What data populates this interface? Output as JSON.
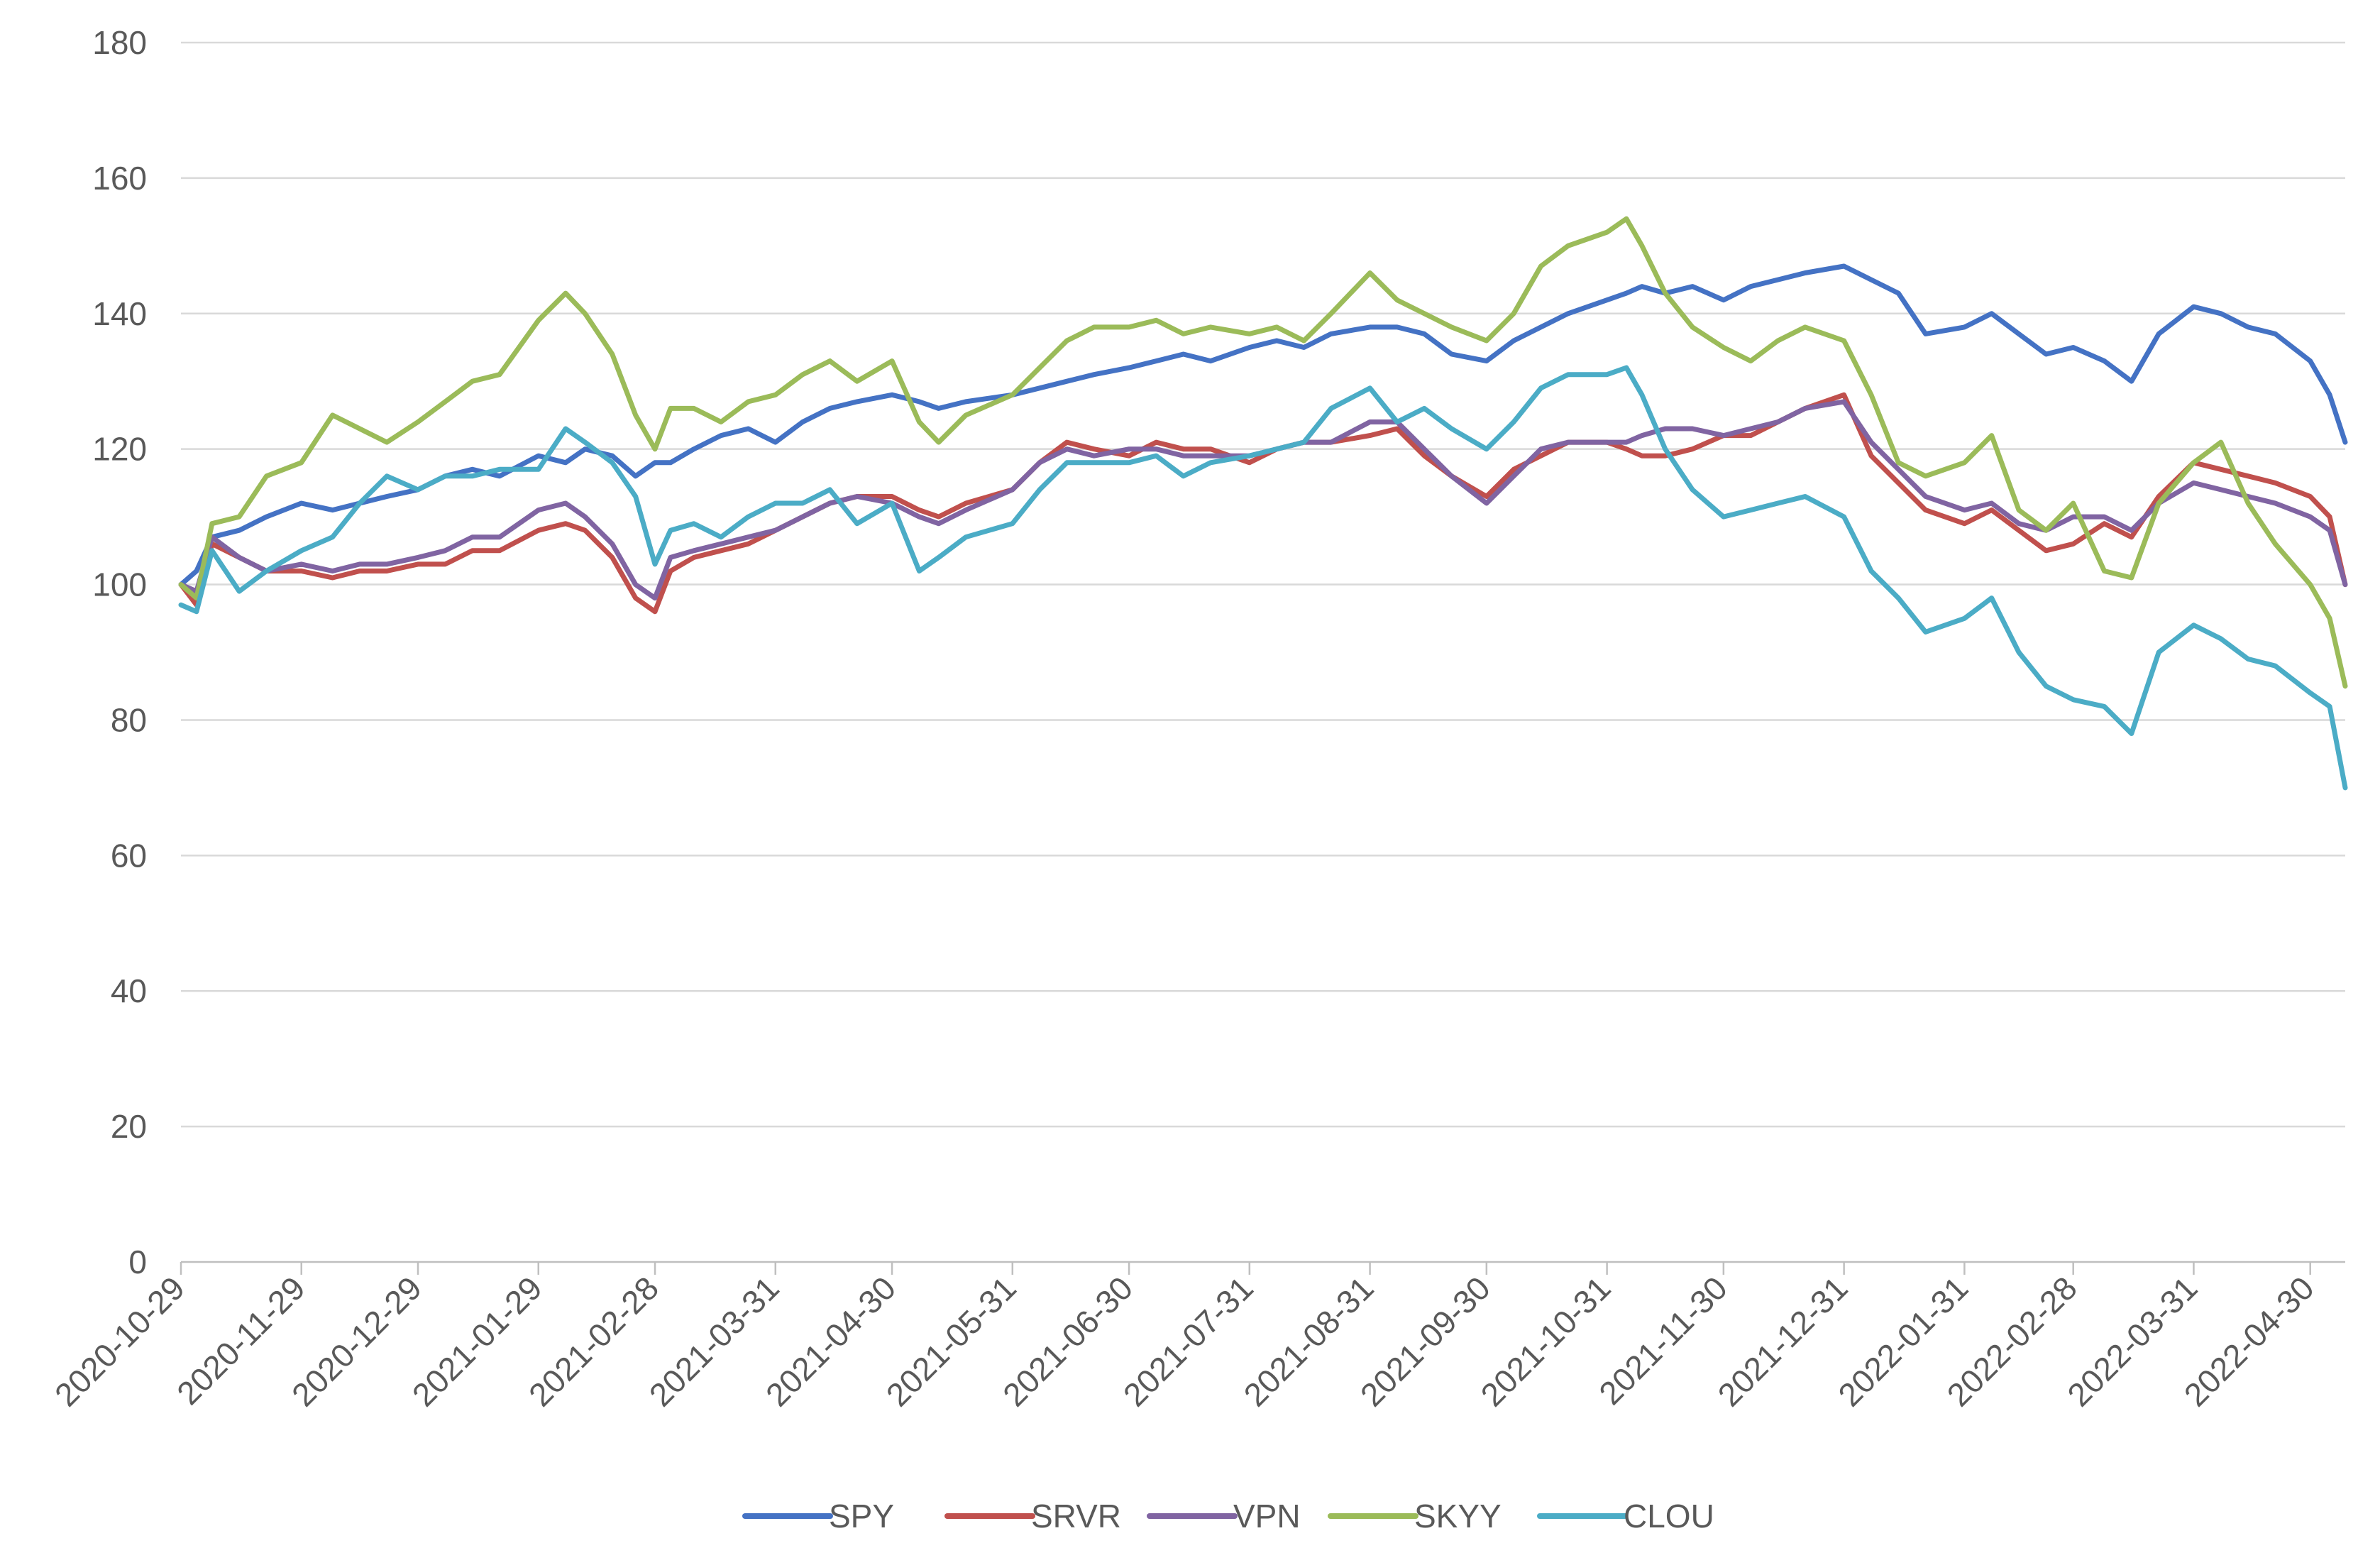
{
  "chart_data": {
    "type": "line",
    "title": "",
    "xlabel": "",
    "ylabel": "",
    "ylim": [
      0,
      180
    ],
    "yticks": [
      0,
      20,
      40,
      60,
      80,
      100,
      120,
      140,
      160,
      180
    ],
    "xlim": [
      "2020-10-29",
      "2022-05-09"
    ],
    "xticks": [
      "2020-10-29",
      "2020-11-29",
      "2020-12-29",
      "2021-01-29",
      "2021-02-28",
      "2021-03-31",
      "2021-04-30",
      "2021-05-31",
      "2021-06-30",
      "2021-07-31",
      "2021-08-31",
      "2021-09-30",
      "2021-10-31",
      "2021-11-30",
      "2021-12-31",
      "2022-01-31",
      "2022-02-28",
      "2022-03-31",
      "2022-04-30"
    ],
    "grid": true,
    "legend_position": "bottom",
    "x": [
      "2020-10-29",
      "2020-11-02",
      "2020-11-06",
      "2020-11-13",
      "2020-11-20",
      "2020-11-29",
      "2020-12-07",
      "2020-12-14",
      "2020-12-21",
      "2020-12-29",
      "2021-01-05",
      "2021-01-12",
      "2021-01-19",
      "2021-01-29",
      "2021-02-05",
      "2021-02-10",
      "2021-02-17",
      "2021-02-23",
      "2021-02-28",
      "2021-03-04",
      "2021-03-10",
      "2021-03-17",
      "2021-03-24",
      "2021-03-31",
      "2021-04-07",
      "2021-04-14",
      "2021-04-21",
      "2021-04-30",
      "2021-05-07",
      "2021-05-12",
      "2021-05-19",
      "2021-05-31",
      "2021-06-07",
      "2021-06-14",
      "2021-06-21",
      "2021-06-30",
      "2021-07-07",
      "2021-07-14",
      "2021-07-21",
      "2021-07-31",
      "2021-08-07",
      "2021-08-14",
      "2021-08-21",
      "2021-08-31",
      "2021-09-07",
      "2021-09-14",
      "2021-09-21",
      "2021-09-30",
      "2021-10-07",
      "2021-10-14",
      "2021-10-21",
      "2021-10-31",
      "2021-11-05",
      "2021-11-09",
      "2021-11-15",
      "2021-11-22",
      "2021-11-30",
      "2021-12-07",
      "2021-12-14",
      "2021-12-21",
      "2021-12-31",
      "2022-01-07",
      "2022-01-14",
      "2022-01-21",
      "2022-01-31",
      "2022-02-07",
      "2022-02-14",
      "2022-02-21",
      "2022-02-28",
      "2022-03-08",
      "2022-03-15",
      "2022-03-22",
      "2022-03-31",
      "2022-04-07",
      "2022-04-14",
      "2022-04-21",
      "2022-04-30",
      "2022-05-05",
      "2022-05-09"
    ],
    "series": [
      {
        "name": "SPY",
        "color": "#4472c4",
        "values": [
          100,
          102,
          107,
          108,
          110,
          112,
          111,
          112,
          113,
          114,
          116,
          117,
          116,
          119,
          118,
          120,
          119,
          116,
          118,
          118,
          120,
          122,
          123,
          121,
          124,
          126,
          127,
          128,
          127,
          126,
          127,
          128,
          129,
          130,
          131,
          132,
          133,
          134,
          133,
          135,
          136,
          135,
          137,
          138,
          138,
          137,
          134,
          133,
          136,
          138,
          140,
          142,
          143,
          144,
          143,
          144,
          142,
          144,
          145,
          146,
          147,
          145,
          143,
          137,
          138,
          140,
          137,
          134,
          135,
          133,
          130,
          137,
          141,
          140,
          138,
          137,
          133,
          128,
          121
        ]
      },
      {
        "name": "SRVR",
        "color": "#c0504d",
        "values": [
          100,
          97,
          106,
          104,
          102,
          102,
          101,
          102,
          102,
          103,
          103,
          105,
          105,
          108,
          109,
          108,
          104,
          98,
          96,
          102,
          104,
          105,
          106,
          108,
          110,
          112,
          113,
          113,
          111,
          110,
          112,
          114,
          118,
          121,
          120,
          119,
          121,
          120,
          120,
          118,
          120,
          121,
          121,
          122,
          123,
          119,
          116,
          113,
          117,
          119,
          121,
          121,
          120,
          119,
          119,
          120,
          122,
          122,
          124,
          126,
          128,
          119,
          115,
          111,
          109,
          111,
          108,
          105,
          106,
          109,
          107,
          113,
          118,
          117,
          116,
          115,
          113,
          110,
          100
        ]
      },
      {
        "name": "VPN",
        "color": "#8064a2",
        "values": [
          100,
          99,
          107,
          104,
          102,
          103,
          102,
          103,
          103,
          104,
          105,
          107,
          107,
          111,
          112,
          110,
          106,
          100,
          98,
          104,
          105,
          106,
          107,
          108,
          110,
          112,
          113,
          112,
          110,
          109,
          111,
          114,
          118,
          120,
          119,
          120,
          120,
          119,
          119,
          119,
          120,
          121,
          121,
          124,
          124,
          120,
          116,
          112,
          116,
          120,
          121,
          121,
          121,
          122,
          123,
          123,
          122,
          123,
          124,
          126,
          127,
          121,
          117,
          113,
          111,
          112,
          109,
          108,
          110,
          110,
          108,
          112,
          115,
          114,
          113,
          112,
          110,
          108,
          100
        ]
      },
      {
        "name": "SKYY",
        "color": "#9bbb59",
        "values": [
          100,
          98,
          109,
          110,
          116,
          118,
          125,
          123,
          121,
          124,
          127,
          130,
          131,
          139,
          143,
          140,
          134,
          125,
          120,
          126,
          126,
          124,
          127,
          128,
          131,
          133,
          130,
          133,
          124,
          121,
          125,
          128,
          132,
          136,
          138,
          138,
          139,
          137,
          138,
          137,
          138,
          136,
          140,
          146,
          142,
          140,
          138,
          136,
          140,
          147,
          150,
          152,
          154,
          150,
          143,
          138,
          135,
          133,
          136,
          138,
          136,
          128,
          118,
          116,
          118,
          122,
          111,
          108,
          112,
          102,
          101,
          112,
          118,
          121,
          112,
          106,
          100,
          95,
          85
        ]
      },
      {
        "name": "CLOU",
        "color": "#4bacc6",
        "values": [
          97,
          96,
          105,
          99,
          102,
          105,
          107,
          112,
          116,
          114,
          116,
          116,
          117,
          117,
          123,
          121,
          118,
          113,
          103,
          108,
          109,
          107,
          110,
          112,
          112,
          114,
          109,
          112,
          102,
          104,
          107,
          109,
          114,
          118,
          118,
          118,
          119,
          116,
          118,
          119,
          120,
          121,
          126,
          129,
          124,
          126,
          123,
          120,
          124,
          129,
          131,
          131,
          132,
          128,
          120,
          114,
          110,
          111,
          112,
          113,
          110,
          102,
          98,
          93,
          95,
          98,
          90,
          85,
          83,
          82,
          78,
          90,
          94,
          92,
          89,
          88,
          84,
          82,
          70
        ]
      }
    ]
  }
}
